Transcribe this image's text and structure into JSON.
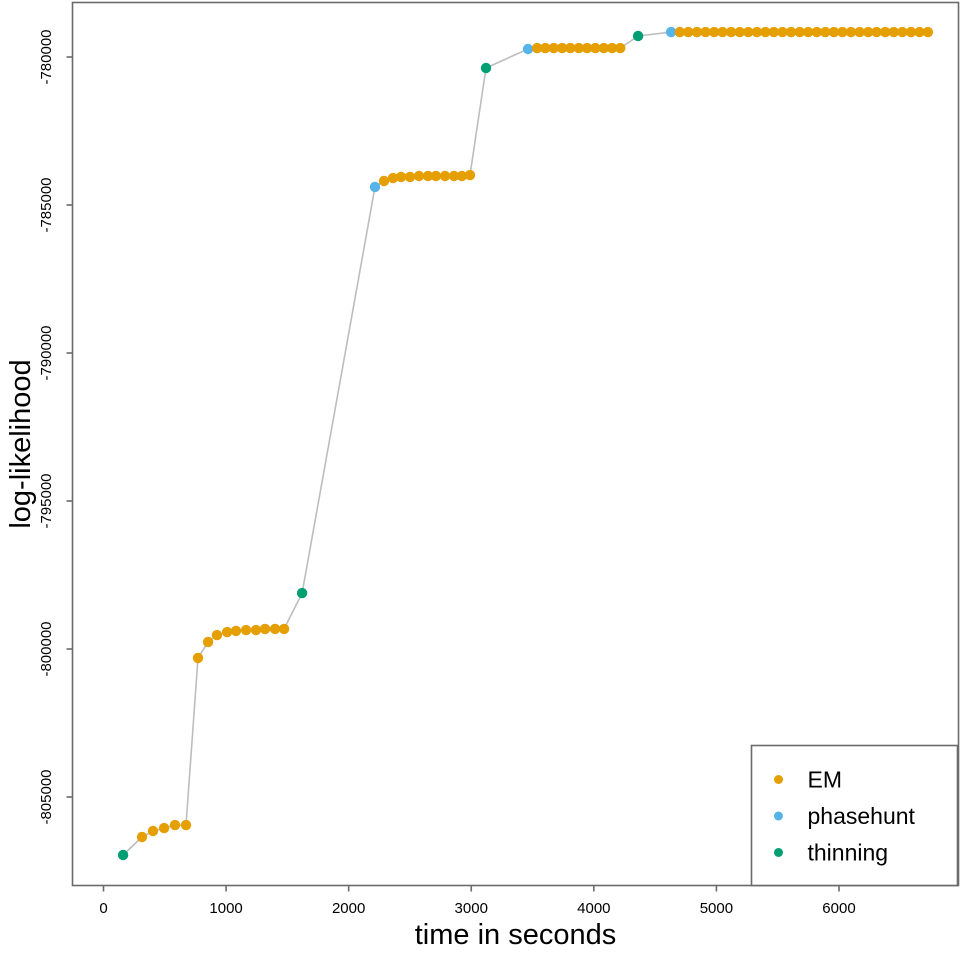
{
  "figure": {
    "xlabel": "time in seconds",
    "ylabel": "log-likelihood",
    "x_tick_labels": [
      "0",
      "1000",
      "2000",
      "3000",
      "4000",
      "5000",
      "6000"
    ],
    "y_tick_labels": [
      "-780000",
      "-785000",
      "-790000",
      "-795000",
      "-800000",
      "-805000"
    ]
  },
  "legend": {
    "position": "bottom-right",
    "items": [
      {
        "label": "EM",
        "color": "#E69F00"
      },
      {
        "label": "phasehunt",
        "color": "#56B4E9"
      },
      {
        "label": "thinning",
        "color": "#009E73"
      }
    ]
  },
  "colors": {
    "em": "#E69F00",
    "phasehunt": "#56B4E9",
    "thinning": "#009E73",
    "connector_line": "#BDBDBD",
    "axis_box": "#6B6B6B",
    "text": "#000000"
  },
  "chart_data": {
    "type": "scatter",
    "line_connect": true,
    "title": "",
    "xlabel": "time in seconds",
    "ylabel": "log-likelihood",
    "xlim": [
      -260,
      6980
    ],
    "ylim": [
      -808000,
      -778150
    ],
    "x_ticks": [
      0,
      1000,
      2000,
      3000,
      4000,
      5000,
      6000
    ],
    "y_ticks": [
      -780000,
      -785000,
      -790000,
      -795000,
      -800000,
      -805000
    ],
    "grid": false,
    "legend_position": "bottom-right",
    "series_meta": [
      {
        "name": "EM",
        "color": "#E69F00"
      },
      {
        "name": "phasehunt",
        "color": "#56B4E9"
      },
      {
        "name": "thinning",
        "color": "#009E73"
      }
    ],
    "points": [
      {
        "t": 160,
        "v": -806960,
        "s": "thinning"
      },
      {
        "t": 314,
        "v": -806350,
        "s": "EM"
      },
      {
        "t": 404,
        "v": -806150,
        "s": "EM"
      },
      {
        "t": 494,
        "v": -806050,
        "s": "EM"
      },
      {
        "t": 583,
        "v": -805950,
        "s": "EM"
      },
      {
        "t": 673,
        "v": -805950,
        "s": "EM"
      },
      {
        "t": 771,
        "v": -800300,
        "s": "EM"
      },
      {
        "t": 853,
        "v": -799760,
        "s": "EM"
      },
      {
        "t": 926,
        "v": -799530,
        "s": "EM"
      },
      {
        "t": 1008,
        "v": -799430,
        "s": "EM"
      },
      {
        "t": 1081,
        "v": -799390,
        "s": "EM"
      },
      {
        "t": 1163,
        "v": -799360,
        "s": "EM"
      },
      {
        "t": 1244,
        "v": -799360,
        "s": "EM"
      },
      {
        "t": 1318,
        "v": -799320,
        "s": "EM"
      },
      {
        "t": 1399,
        "v": -799320,
        "s": "EM"
      },
      {
        "t": 1473,
        "v": -799320,
        "s": "EM"
      },
      {
        "t": 1620,
        "v": -798110,
        "s": "thinning"
      },
      {
        "t": 2215,
        "v": -784390,
        "s": "phasehunt"
      },
      {
        "t": 2288,
        "v": -784190,
        "s": "EM"
      },
      {
        "t": 2362,
        "v": -784090,
        "s": "EM"
      },
      {
        "t": 2427,
        "v": -784050,
        "s": "EM"
      },
      {
        "t": 2500,
        "v": -784050,
        "s": "EM"
      },
      {
        "t": 2574,
        "v": -784020,
        "s": "EM"
      },
      {
        "t": 2647,
        "v": -784020,
        "s": "EM"
      },
      {
        "t": 2712,
        "v": -784020,
        "s": "EM"
      },
      {
        "t": 2786,
        "v": -784020,
        "s": "EM"
      },
      {
        "t": 2859,
        "v": -784020,
        "s": "EM"
      },
      {
        "t": 2924,
        "v": -784020,
        "s": "EM"
      },
      {
        "t": 2990,
        "v": -783990,
        "s": "EM"
      },
      {
        "t": 3120,
        "v": -780370,
        "s": "thinning"
      },
      {
        "t": 3463,
        "v": -779730,
        "s": "phasehunt"
      },
      {
        "t": 3537,
        "v": -779700,
        "s": "EM"
      },
      {
        "t": 3604,
        "v": -779700,
        "s": "EM"
      },
      {
        "t": 3673,
        "v": -779700,
        "s": "EM"
      },
      {
        "t": 3741,
        "v": -779700,
        "s": "EM"
      },
      {
        "t": 3808,
        "v": -779700,
        "s": "EM"
      },
      {
        "t": 3877,
        "v": -779700,
        "s": "EM"
      },
      {
        "t": 3945,
        "v": -779700,
        "s": "EM"
      },
      {
        "t": 4012,
        "v": -779700,
        "s": "EM"
      },
      {
        "t": 4081,
        "v": -779700,
        "s": "EM"
      },
      {
        "t": 4149,
        "v": -779700,
        "s": "EM"
      },
      {
        "t": 4216,
        "v": -779700,
        "s": "EM"
      },
      {
        "t": 4361,
        "v": -779290,
        "s": "thinning"
      },
      {
        "t": 4630,
        "v": -779160,
        "s": "phasehunt"
      },
      {
        "t": 4701,
        "v": -779160,
        "s": "EM"
      },
      {
        "t": 4771,
        "v": -779160,
        "s": "EM"
      },
      {
        "t": 4841,
        "v": -779160,
        "s": "EM"
      },
      {
        "t": 4911,
        "v": -779160,
        "s": "EM"
      },
      {
        "t": 4981,
        "v": -779160,
        "s": "EM"
      },
      {
        "t": 5050,
        "v": -779160,
        "s": "EM"
      },
      {
        "t": 5120,
        "v": -779160,
        "s": "EM"
      },
      {
        "t": 5190,
        "v": -779160,
        "s": "EM"
      },
      {
        "t": 5260,
        "v": -779160,
        "s": "EM"
      },
      {
        "t": 5330,
        "v": -779160,
        "s": "EM"
      },
      {
        "t": 5400,
        "v": -779160,
        "s": "EM"
      },
      {
        "t": 5469,
        "v": -779160,
        "s": "EM"
      },
      {
        "t": 5539,
        "v": -779160,
        "s": "EM"
      },
      {
        "t": 5609,
        "v": -779160,
        "s": "EM"
      },
      {
        "t": 5679,
        "v": -779160,
        "s": "EM"
      },
      {
        "t": 5749,
        "v": -779160,
        "s": "EM"
      },
      {
        "t": 5819,
        "v": -779160,
        "s": "EM"
      },
      {
        "t": 5888,
        "v": -779160,
        "s": "EM"
      },
      {
        "t": 5958,
        "v": -779160,
        "s": "EM"
      },
      {
        "t": 6028,
        "v": -779160,
        "s": "EM"
      },
      {
        "t": 6098,
        "v": -779160,
        "s": "EM"
      },
      {
        "t": 6168,
        "v": -779160,
        "s": "EM"
      },
      {
        "t": 6238,
        "v": -779160,
        "s": "EM"
      },
      {
        "t": 6307,
        "v": -779160,
        "s": "EM"
      },
      {
        "t": 6377,
        "v": -779160,
        "s": "EM"
      },
      {
        "t": 6447,
        "v": -779160,
        "s": "EM"
      },
      {
        "t": 6517,
        "v": -779160,
        "s": "EM"
      },
      {
        "t": 6587,
        "v": -779160,
        "s": "EM"
      },
      {
        "t": 6657,
        "v": -779160,
        "s": "EM"
      },
      {
        "t": 6725,
        "v": -779160,
        "s": "EM"
      }
    ]
  }
}
